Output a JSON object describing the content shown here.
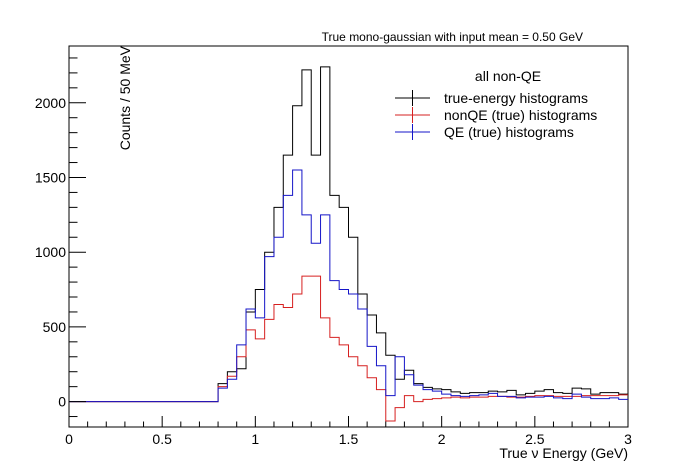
{
  "chart_data": {
    "type": "histogram",
    "title": "True mono-gaussian with input mean = 0.50 GeV",
    "xlabel": "True ν Energy (GeV)",
    "ylabel": "Counts / 50 MeV",
    "xlim": [
      0,
      3
    ],
    "ylim": [
      -170,
      2380
    ],
    "x_ticks": [
      0,
      0.5,
      1,
      1.5,
      2,
      2.5,
      3
    ],
    "x_tick_labels": [
      "0",
      "0.5",
      "1",
      "1.5",
      "2",
      "2.5",
      "3"
    ],
    "y_ticks": [
      0,
      500,
      1000,
      1500,
      2000
    ],
    "y_tick_labels": [
      "0",
      "500",
      "1000",
      "1500",
      "2000"
    ],
    "grid": false,
    "legend": {
      "title": "all non-QE",
      "position": "top-right",
      "entries": [
        "true-energy histograms",
        "nonQE (true) histograms",
        "QE (true) histograms"
      ]
    },
    "bin_width": 0.05,
    "bin_edges_start": 0,
    "series": [
      {
        "name": "true-energy histograms",
        "color": "#000000",
        "values": [
          0,
          0,
          0,
          0,
          0,
          0,
          0,
          0,
          0,
          0,
          0,
          0,
          0,
          0,
          0,
          0,
          120,
          200,
          220,
          600,
          750,
          1000,
          1300,
          1650,
          1980,
          2220,
          1650,
          2240,
          1380,
          1300,
          1100,
          720,
          580,
          460,
          310,
          150,
          210,
          120,
          95,
          85,
          80,
          65,
          55,
          60,
          60,
          70,
          65,
          75,
          45,
          55,
          70,
          80,
          60,
          55,
          90,
          85,
          50,
          60,
          60,
          50
        ]
      },
      {
        "name": "nonQE (true) histograms",
        "color": "#d62020",
        "values": [
          0,
          0,
          0,
          0,
          0,
          0,
          0,
          0,
          0,
          0,
          0,
          0,
          0,
          0,
          0,
          0,
          100,
          170,
          300,
          480,
          420,
          550,
          650,
          630,
          720,
          840,
          840,
          560,
          430,
          380,
          300,
          240,
          160,
          80,
          -130,
          -40,
          40,
          0,
          15,
          20,
          25,
          30,
          25,
          30,
          30,
          35,
          35,
          30,
          30,
          35,
          40,
          40,
          35,
          35,
          35,
          40,
          40,
          40,
          40,
          45
        ]
      },
      {
        "name": "QE (true) histograms",
        "color": "#1515c8",
        "values": [
          0,
          0,
          0,
          0,
          0,
          0,
          0,
          0,
          0,
          0,
          0,
          0,
          0,
          0,
          0,
          0,
          90,
          150,
          380,
          620,
          560,
          970,
          1100,
          1380,
          1550,
          1250,
          1060,
          1250,
          810,
          750,
          720,
          620,
          370,
          240,
          40,
          300,
          180,
          110,
          80,
          70,
          50,
          40,
          35,
          40,
          45,
          55,
          35,
          35,
          25,
          30,
          30,
          35,
          25,
          20,
          50,
          30,
          20,
          20,
          25,
          15
        ]
      }
    ]
  }
}
